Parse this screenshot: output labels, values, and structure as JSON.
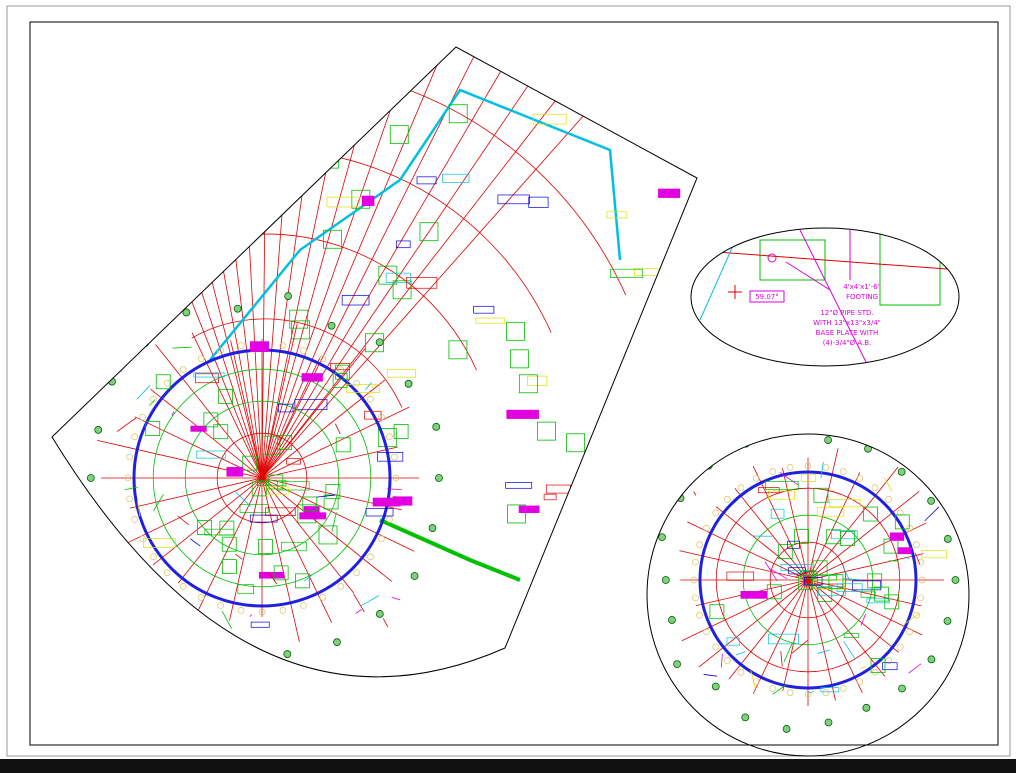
{
  "detail_callout": {
    "footing": [
      "4'x4'x1'-6\"",
      "FOOTING"
    ],
    "pipe_note": [
      "12\"Ø PIPE STD.",
      "WITH 13\"x13\"x3/4\"",
      "BASE PLATE WITH",
      "(4)-3/4\"Ø A.B."
    ],
    "angle": "59.07°"
  }
}
